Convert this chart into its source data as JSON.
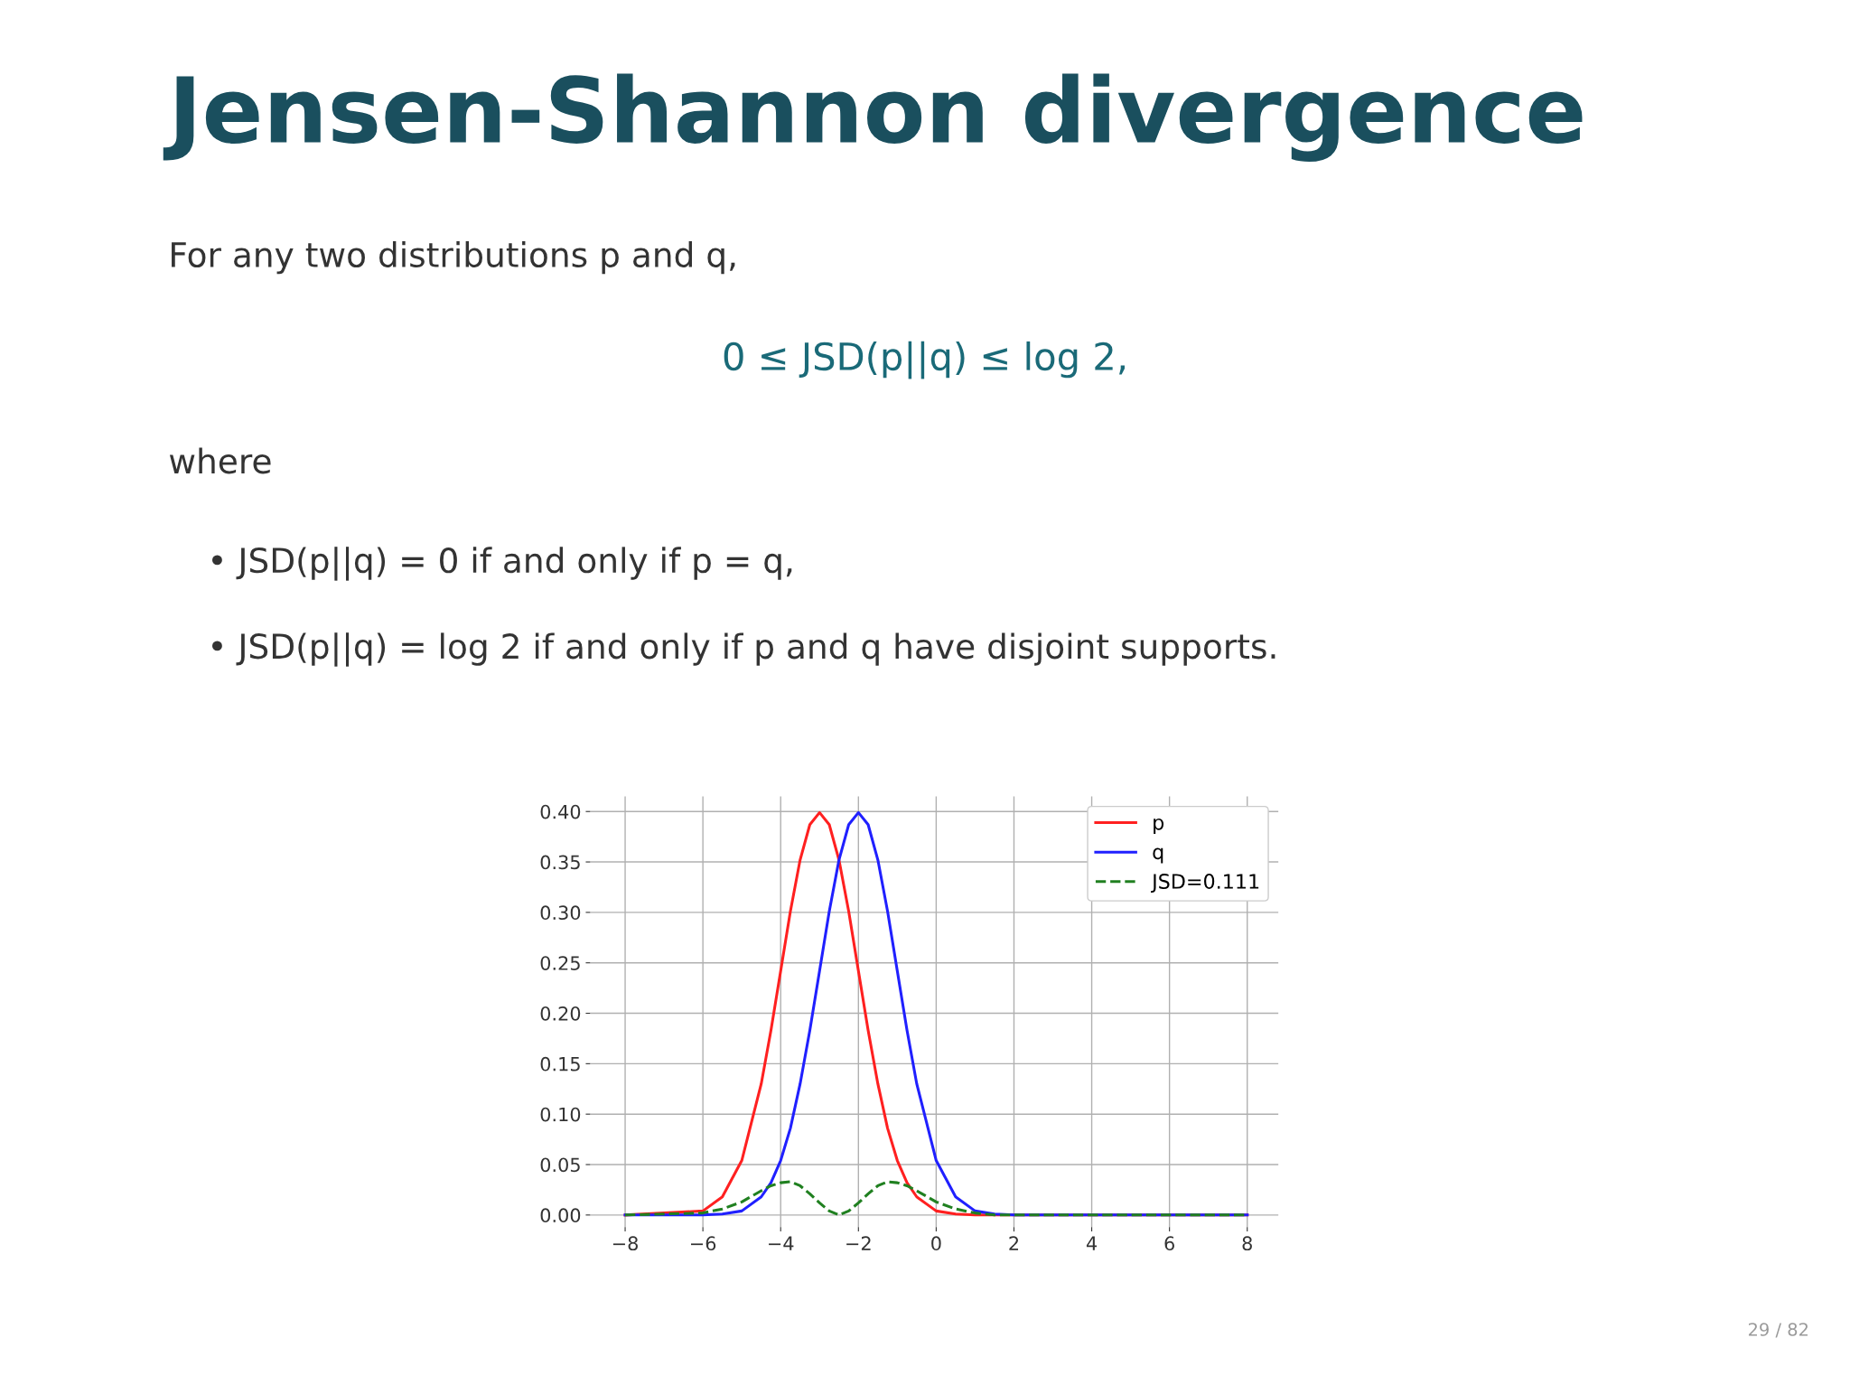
{
  "chart_data": {
    "type": "line",
    "title": "Jensen-Shannon divergence",
    "annotations": [
      "For any two distributions p and q,",
      "0 ≤ JSD(p||q) ≤ log 2,",
      "where",
      "• JSD(p||q) = 0 if and only if p = q,",
      "• JSD(p||q) = log 2 if and only if p and q have disjoint supports.",
      "29 / 82"
    ],
    "x": [
      -8,
      -6,
      -5.5,
      -5,
      -4.5,
      -4.25,
      -4,
      -3.75,
      -3.5,
      -3.25,
      -3,
      -2.75,
      -2.5,
      -2.25,
      -2,
      -1.75,
      -1.5,
      -1.25,
      -1,
      -0.75,
      -0.5,
      0,
      0.5,
      1,
      1.5,
      2,
      8
    ],
    "series": [
      {
        "name": "p",
        "color": "#ff2020",
        "values": [
          0,
          0.004,
          0.018,
          0.054,
          0.13,
          0.183,
          0.242,
          0.301,
          0.352,
          0.387,
          0.399,
          0.387,
          0.352,
          0.301,
          0.242,
          0.183,
          0.13,
          0.086,
          0.054,
          0.032,
          0.018,
          0.004,
          0.001,
          0,
          0,
          0,
          0
        ]
      },
      {
        "name": "q",
        "color": "#2020ff",
        "values": [
          0,
          0,
          0.001,
          0.004,
          0.018,
          0.032,
          0.054,
          0.086,
          0.13,
          0.183,
          0.242,
          0.301,
          0.352,
          0.387,
          0.399,
          0.387,
          0.352,
          0.301,
          0.242,
          0.183,
          0.13,
          0.054,
          0.018,
          0.004,
          0.001,
          0,
          0
        ]
      },
      {
        "name": "JSD=0.111",
        "color": "#208020",
        "line_style": "dashed",
        "values": [
          0,
          0.002,
          0.006,
          0.013,
          0.024,
          0.029,
          0.032,
          0.033,
          0.029,
          0.021,
          0.012,
          0.004,
          0,
          0.004,
          0.012,
          0.021,
          0.029,
          0.033,
          0.032,
          0.029,
          0.024,
          0.013,
          0.006,
          0.002,
          0,
          0,
          0
        ]
      }
    ],
    "xlim": [
      -8.9,
      8.8
    ],
    "ylim": [
      -0.012,
      0.415
    ],
    "xticks": [
      -8,
      -6,
      -4,
      -2,
      0,
      2,
      4,
      6,
      8
    ],
    "yticks": [
      {
        "value": 0,
        "label": "0.00"
      },
      {
        "value": 0.05,
        "label": "0.05"
      },
      {
        "value": 0.1,
        "label": "0.10"
      },
      {
        "value": 0.15,
        "label": "0.15"
      },
      {
        "value": 0.2,
        "label": "0.20"
      },
      {
        "value": 0.25,
        "label": "0.25"
      },
      {
        "value": 0.3,
        "label": "0.30"
      },
      {
        "value": 0.35,
        "label": "0.35"
      },
      {
        "value": 0.4,
        "label": "0.40"
      }
    ],
    "grid": true,
    "legend": "top right",
    "line_style": "solid"
  }
}
